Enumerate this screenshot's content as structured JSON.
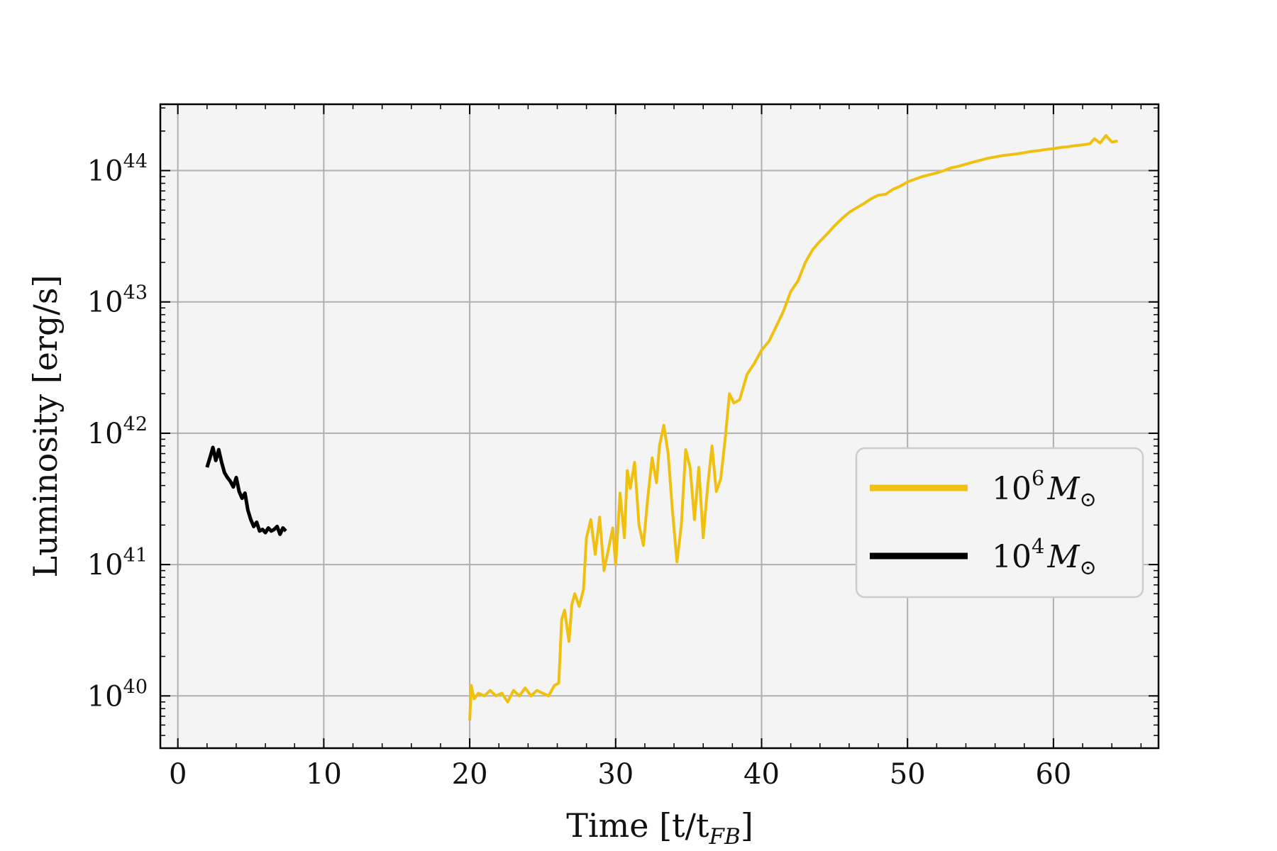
{
  "chart_data": {
    "type": "line",
    "xlabel": "Time [t/t",
    "xlabel_sub": "FB",
    "xlabel_end": "]",
    "ylabel": "Luminosity [erg/s]",
    "y_scale": "log",
    "xlim": [
      -1.2,
      67.2
    ],
    "ylim": [
      4e+39,
      3.2e+44
    ],
    "x_ticks": [
      0,
      10,
      20,
      30,
      40,
      50,
      60
    ],
    "x_tick_labels": [
      "0",
      "10",
      "20",
      "30",
      "40",
      "50",
      "60"
    ],
    "y_ticks": [
      1e+40,
      1e+41,
      1e+42,
      1e+43,
      1e+44
    ],
    "y_tick_labels": [
      {
        "base": "10",
        "exp": "40"
      },
      {
        "base": "10",
        "exp": "41"
      },
      {
        "base": "10",
        "exp": "42"
      },
      {
        "base": "10",
        "exp": "43"
      },
      {
        "base": "10",
        "exp": "44"
      }
    ],
    "grid": true,
    "legend_position": "center-right",
    "series": [
      {
        "name": "10^6 M_sun",
        "legend": {
          "base": "10",
          "exp": "6",
          "symbol": "M",
          "sub": "⊙"
        },
        "color": "#f0c010",
        "x": [
          20.0,
          20.1,
          20.3,
          20.6,
          21.0,
          21.4,
          21.8,
          22.2,
          22.6,
          23.0,
          23.4,
          23.8,
          24.2,
          24.6,
          25.0,
          25.4,
          25.8,
          26.1,
          26.3,
          26.5,
          26.8,
          27.0,
          27.2,
          27.5,
          27.8,
          28.0,
          28.3,
          28.6,
          28.9,
          29.2,
          29.5,
          29.8,
          30.0,
          30.3,
          30.6,
          30.8,
          31.0,
          31.3,
          31.6,
          31.9,
          32.2,
          32.5,
          32.8,
          33.0,
          33.3,
          33.6,
          33.9,
          34.2,
          34.5,
          34.8,
          35.1,
          35.4,
          35.7,
          36.0,
          36.3,
          36.6,
          36.9,
          37.2,
          37.5,
          37.8,
          38.1,
          38.5,
          39.0,
          39.5,
          40.0,
          40.5,
          41.0,
          41.5,
          42.0,
          42.5,
          43.0,
          43.5,
          44.0,
          44.5,
          45.0,
          45.5,
          46.0,
          46.5,
          47.0,
          47.5,
          48.0,
          48.5,
          49.0,
          49.5,
          50.0,
          50.5,
          51.0,
          51.5,
          52.0,
          52.5,
          53.0,
          53.5,
          54.0,
          54.5,
          55.0,
          55.5,
          56.0,
          56.5,
          57.0,
          57.5,
          58.0,
          58.5,
          59.0,
          59.5,
          60.0,
          60.5,
          61.0,
          61.5,
          62.0,
          62.5,
          62.8,
          63.2,
          63.6,
          64.0,
          64.4
        ],
        "y": [
          6.5e+39,
          1.2e+40,
          9.5e+39,
          1.05e+40,
          1e+40,
          1.1e+40,
          1e+40,
          1.05e+40,
          9e+39,
          1.1e+40,
          1e+40,
          1.15e+40,
          1e+40,
          1.1e+40,
          1.05e+40,
          1e+40,
          1.2e+40,
          1.25e+40,
          3.8e+40,
          4.5e+40,
          2.6e+40,
          5e+40,
          6e+40,
          4.8e+40,
          6.5e+40,
          1.6e+41,
          2.2e+41,
          1.2e+41,
          2.3e+41,
          9e+40,
          1.3e+41,
          1.9e+41,
          1e+41,
          3.5e+41,
          1.6e+41,
          5.2e+41,
          3.8e+41,
          6e+41,
          2e+41,
          1.4e+41,
          3.2e+41,
          6.5e+41,
          4.2e+41,
          8e+41,
          1.15e+42,
          7e+41,
          2.5e+41,
          1.05e+41,
          2e+41,
          7.5e+41,
          5.5e+41,
          2.2e+41,
          5.5e+41,
          1.6e+41,
          3.9e+41,
          8e+41,
          3.6e+41,
          4.5e+41,
          9e+41,
          2e+42,
          1.7e+42,
          1.8e+42,
          2.8e+42,
          3.4e+42,
          4.3e+42,
          5e+42,
          6.5e+42,
          8.5e+42,
          1.2e+43,
          1.45e+43,
          2e+43,
          2.5e+43,
          2.9e+43,
          3.3e+43,
          3.8e+43,
          4.3e+43,
          4.8e+43,
          5.2e+43,
          5.6e+43,
          6.1e+43,
          6.5e+43,
          6.6e+43,
          7.2e+43,
          7.6e+43,
          8.2e+43,
          8.6e+43,
          9e+43,
          9.3e+43,
          9.6e+43,
          1e+44,
          1.05e+44,
          1.08e+44,
          1.12e+44,
          1.16e+44,
          1.2e+44,
          1.24e+44,
          1.27e+44,
          1.3e+44,
          1.32e+44,
          1.34e+44,
          1.37e+44,
          1.4e+44,
          1.42e+44,
          1.45e+44,
          1.47e+44,
          1.5e+44,
          1.52e+44,
          1.55e+44,
          1.57e+44,
          1.6e+44,
          1.75e+44,
          1.62e+44,
          1.85e+44,
          1.65e+44,
          1.68e+44
        ]
      },
      {
        "name": "10^4 M_sun",
        "legend": {
          "base": "10",
          "exp": "4",
          "symbol": "M",
          "sub": "⊙"
        },
        "color": "#000000",
        "x": [
          2.0,
          2.2,
          2.4,
          2.6,
          2.8,
          3.0,
          3.2,
          3.4,
          3.6,
          3.8,
          4.0,
          4.2,
          4.4,
          4.6,
          4.8,
          5.0,
          5.2,
          5.4,
          5.6,
          5.8,
          6.0,
          6.2,
          6.4,
          6.6,
          6.8,
          7.0,
          7.2,
          7.4
        ],
        "y": [
          5.5e+41,
          6.5e+41,
          7.8e+41,
          6.2e+41,
          7.5e+41,
          6e+41,
          5e+41,
          4.6e+41,
          4.3e+41,
          3.9e+41,
          4.6e+41,
          3.6e+41,
          3.2e+41,
          3.5e+41,
          2.6e+41,
          2.2e+41,
          1.95e+41,
          2.1e+41,
          1.8e+41,
          1.85e+41,
          1.75e+41,
          1.9e+41,
          1.8e+41,
          1.85e+41,
          1.95e+41,
          1.7e+41,
          1.9e+41,
          1.8e+41
        ]
      }
    ]
  }
}
